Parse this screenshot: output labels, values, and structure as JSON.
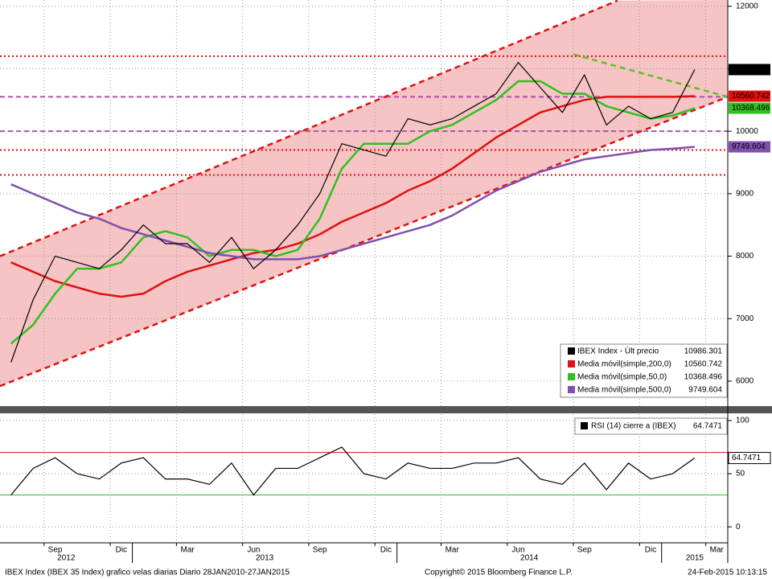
{
  "chart_data": {
    "type": "line",
    "x": [
      "2012-07",
      "2012-08",
      "2012-09",
      "2012-10",
      "2012-11",
      "2012-12",
      "2013-01",
      "2013-02",
      "2013-03",
      "2013-04",
      "2013-05",
      "2013-06",
      "2013-07",
      "2013-08",
      "2013-09",
      "2013-10",
      "2013-11",
      "2013-12",
      "2014-01",
      "2014-02",
      "2014-03",
      "2014-04",
      "2014-05",
      "2014-06",
      "2014-07",
      "2014-08",
      "2014-09",
      "2014-10",
      "2014-11",
      "2014-12",
      "2015-01",
      "2015-02"
    ],
    "xlim": [
      "2012-07",
      "2015-04"
    ],
    "xticks": [
      {
        "value": "2012-09",
        "label": "Sep"
      },
      {
        "value": "2012-12",
        "label": "Dic"
      },
      {
        "value": "2013-03",
        "label": "Mar"
      },
      {
        "value": "2013-06",
        "label": "Jun"
      },
      {
        "value": "2013-09",
        "label": "Sep"
      },
      {
        "value": "2013-12",
        "label": "Dic"
      },
      {
        "value": "2014-03",
        "label": "Mar"
      },
      {
        "value": "2014-06",
        "label": "Jun"
      },
      {
        "value": "2014-09",
        "label": "Sep"
      },
      {
        "value": "2014-12",
        "label": "Dic"
      },
      {
        "value": "2015-03",
        "label": "Mar"
      }
    ],
    "year_ticks": [
      2012,
      2013,
      2014,
      2015
    ],
    "ylim": [
      5600,
      12100
    ],
    "yticks": [
      6000,
      7000,
      8000,
      9000,
      10000,
      11000,
      12000
    ],
    "y2lim": [
      -15,
      106
    ],
    "y2ticks": [
      0,
      50,
      100
    ],
    "grid": true,
    "series": [
      {
        "name": "IBEX Index - Últ precio",
        "color": "#000000",
        "values": [
          6300,
          7300,
          8000,
          7900,
          7800,
          8100,
          8500,
          8200,
          8200,
          7900,
          8300,
          7800,
          8100,
          8500,
          9000,
          9800,
          9700,
          9600,
          10200,
          10100,
          10200,
          10400,
          10600,
          11100,
          10700,
          10300,
          10900,
          10100,
          10400,
          10200,
          10300,
          10986.301
        ]
      },
      {
        "name": "Media móvil(simple,200,0)",
        "color": "#e01010",
        "values": [
          7900,
          7750,
          7600,
          7500,
          7400,
          7350,
          7400,
          7600,
          7750,
          7850,
          7950,
          8050,
          8100,
          8200,
          8350,
          8550,
          8700,
          8850,
          9050,
          9200,
          9400,
          9650,
          9900,
          10100,
          10300,
          10400,
          10500,
          10550,
          10550,
          10550,
          10550,
          10560.742
        ]
      },
      {
        "name": "Media móvil(simple,50,0)",
        "color": "#30c020",
        "values": [
          6600,
          6900,
          7400,
          7800,
          7800,
          7900,
          8300,
          8400,
          8300,
          8000,
          8100,
          8100,
          8000,
          8100,
          8600,
          9400,
          9800,
          9800,
          9800,
          10000,
          10100,
          10300,
          10500,
          10800,
          10800,
          10600,
          10600,
          10400,
          10300,
          10200,
          10250,
          10368.496
        ]
      },
      {
        "name": "Media móvil(simple,500,0)",
        "color": "#8050b0",
        "values": [
          9150,
          9000,
          8850,
          8700,
          8600,
          8450,
          8350,
          8250,
          8150,
          8050,
          8000,
          7950,
          7950,
          7950,
          8000,
          8100,
          8200,
          8300,
          8400,
          8500,
          8650,
          8850,
          9050,
          9200,
          9350,
          9450,
          9550,
          9600,
          9650,
          9700,
          9720,
          9749.604
        ]
      },
      {
        "name": "RSI (14) cierre a (IBEX)",
        "color": "#000000",
        "axis": "y2",
        "values": [
          30,
          55,
          65,
          50,
          45,
          60,
          65,
          45,
          45,
          40,
          60,
          30,
          55,
          55,
          65,
          75,
          50,
          45,
          60,
          55,
          55,
          60,
          60,
          65,
          45,
          40,
          60,
          35,
          60,
          45,
          50,
          64.7471
        ]
      }
    ],
    "levels": [
      {
        "value": 11200,
        "color": "#e01010",
        "dash": "2,3"
      },
      {
        "value": 10550,
        "color": "#b050b0",
        "dash": "6,4"
      },
      {
        "value": 10000,
        "color": "#b050b0",
        "dash": "6,4"
      },
      {
        "value": 9700,
        "color": "#e01010",
        "dash": "2,3"
      },
      {
        "value": 9300,
        "color": "#e01010",
        "dash": "2,3"
      }
    ],
    "y2_levels": [
      {
        "value": 70,
        "color": "#e01010"
      },
      {
        "value": 30,
        "color": "#30c020"
      }
    ],
    "trendlines": [
      {
        "color": "#e01010",
        "points": [
          [
            "2012-07",
            8000
          ],
          [
            "2014-11",
            12090
          ]
        ]
      },
      {
        "color": "#e01010",
        "points": [
          [
            "2012-07",
            5920
          ],
          [
            "2015-04",
            10550
          ]
        ]
      },
      {
        "color": "#60c020",
        "points": [
          [
            "2014-09",
            11230
          ],
          [
            "2015-04",
            10550
          ]
        ]
      }
    ],
    "channel_color": "#f6c4c4",
    "footer_left": "IBEX Index (IBEX 35 Index) grafico velas diarias  Diario 28JAN2010-27JAN2015",
    "footer_center": "Copyright© 2015 Bloomberg Finance L.P.",
    "footer_right": "24-Feb-2015 10:13:15"
  }
}
